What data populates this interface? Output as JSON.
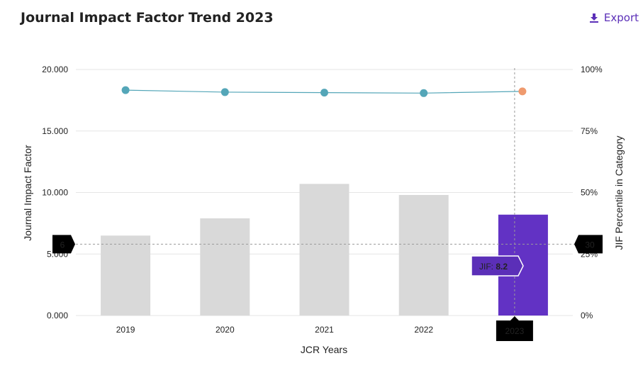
{
  "header": {
    "title": "Journal Impact Factor Trend 2023",
    "export_label": "Export",
    "export_icon": "download-icon"
  },
  "colors": {
    "bar": "#d9d9d9",
    "bar_highlight": "#6232c4",
    "line": "#54a6b8",
    "point": "#54a6b8",
    "point_highlight": "#ef9a6e",
    "accent": "#5b2fb8"
  },
  "chart_data": {
    "type": "bar",
    "xlabel": "JCR Years",
    "ylabel": "Journal Impact Factor",
    "y2label": "JIF Percentile in Category",
    "categories": [
      "2019",
      "2020",
      "2021",
      "2022",
      "2023"
    ],
    "highlight_category": "2023",
    "ylim": [
      0,
      20
    ],
    "y2lim": [
      0,
      100
    ],
    "yticks": [
      "0.000",
      "5.000",
      "10.000",
      "15.000",
      "20.000"
    ],
    "y2ticks": [
      "0%",
      "25%",
      "50%",
      "75%",
      "100%"
    ],
    "grid": true,
    "series": [
      {
        "type": "bar",
        "axis": "left",
        "values": [
          6.5,
          7.9,
          10.7,
          9.8,
          8.2
        ]
      },
      {
        "type": "line",
        "axis": "right",
        "values": [
          91.6,
          90.8,
          90.6,
          90.4,
          91.1
        ]
      }
    ],
    "crosshair": {
      "left_value_label": "6",
      "left_value": 5.8,
      "right_value_label": "30",
      "x_label": "2023",
      "tooltip_label": "JIF:",
      "tooltip_value": "8.2"
    }
  }
}
